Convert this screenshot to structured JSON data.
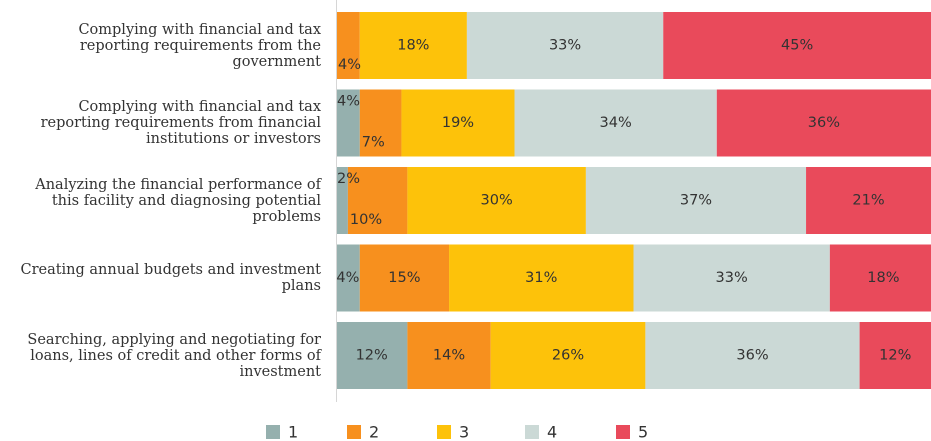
{
  "chart_data": {
    "type": "stacked-bar-horizontal",
    "categories": [
      "Complying with financial and tax reporting requirements from the government",
      "Complying with financial and tax reporting requirements from financial institutions or investors",
      "Analyzing the financial performance of this facility and diagnosing potential problems",
      "Creating annual budgets and investment plans",
      "Searching, applying and negotiating for loans, lines of credit and other forms of investment"
    ],
    "series": [
      {
        "name": "1",
        "color": "#95b0ae",
        "values": [
          0,
          4,
          2,
          4,
          12
        ],
        "value_labels": [
          null,
          "4%",
          "2%",
          "4%",
          "12%"
        ]
      },
      {
        "name": "2",
        "color": "#f7901e",
        "values": [
          4,
          7,
          10,
          15,
          14
        ],
        "value_labels": [
          "4%",
          "7%",
          "10%",
          "15%",
          "14%"
        ]
      },
      {
        "name": "3",
        "color": "#fdc20a",
        "values": [
          18,
          19,
          30,
          31,
          26
        ],
        "value_labels": [
          "18%",
          "19%",
          "30%",
          "31%",
          "26%"
        ]
      },
      {
        "name": "4",
        "color": "#cbd9d6",
        "values": [
          33,
          34,
          37,
          33,
          36
        ],
        "value_labels": [
          "33%",
          "34%",
          "37%",
          "33%",
          "36%"
        ]
      },
      {
        "name": "5",
        "color": "#e94a5b",
        "values": [
          45,
          36,
          21,
          18,
          12
        ],
        "value_labels": [
          "45%",
          "36%",
          "21%",
          "18%",
          "12%"
        ]
      }
    ],
    "xlim": [
      0,
      100
    ],
    "legend": "bottom"
  }
}
